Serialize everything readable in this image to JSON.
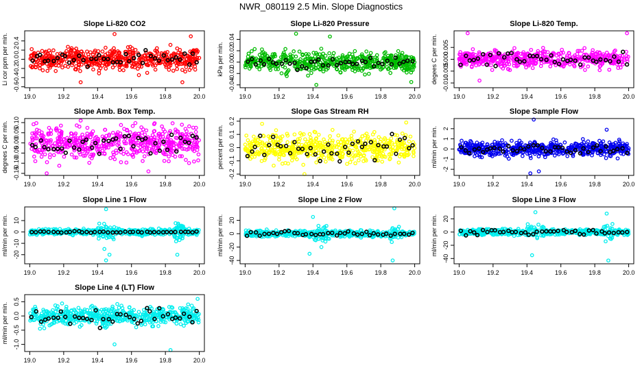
{
  "figure": {
    "title": "NWR_080119  2.5 Min. Slope Diagnostics"
  },
  "colors": {
    "ref_points": "#000000",
    "axes": "#000000"
  },
  "chart_data": [
    {
      "type": "scatter",
      "title": "Slope Li-820 CO2",
      "ylabel": "Li cor ppm per min.",
      "color": "#ff0000",
      "xlim": [
        18.97,
        20.03
      ],
      "ylim": [
        -0.62,
        0.62
      ],
      "yticks": [
        -0.6,
        -0.4,
        -0.2,
        0.0,
        0.2,
        0.4
      ],
      "yticklabels": [
        "-0.6",
        "-0.4",
        "-0.2",
        "0.0",
        "0.2",
        "0.4"
      ],
      "xticks": [
        19.0,
        19.2,
        19.4,
        19.6,
        19.8,
        20.0
      ],
      "xticklabels": [
        "19.0",
        "19.2",
        "19.4",
        "19.6",
        "19.8",
        "20.0"
      ],
      "spread": 0.16,
      "outliers": [
        [
          19.3,
          -0.5
        ],
        [
          19.5,
          0.55
        ],
        [
          19.9,
          -0.5
        ],
        [
          19.95,
          0.5
        ]
      ],
      "n": 550,
      "ref_n": 40,
      "ref_spread": 0.1
    },
    {
      "type": "scatter",
      "title": "Slope Li-820 Pressure",
      "ylabel": "kPa per min.",
      "color": "#00bb00",
      "xlim": [
        18.97,
        20.03
      ],
      "ylim": [
        -0.045,
        0.055
      ],
      "yticks": [
        -0.04,
        -0.02,
        0.0,
        0.02,
        0.04
      ],
      "yticklabels": [
        "-0.04",
        "-0.02",
        "0.00",
        "0.02",
        "0.04"
      ],
      "xticks": [
        19.0,
        19.2,
        19.4,
        19.6,
        19.8,
        20.0
      ],
      "xticklabels": [
        "19.0",
        "19.2",
        "19.4",
        "19.6",
        "19.8",
        "20.0"
      ],
      "spread": 0.012,
      "outliers": [
        [
          19.3,
          0.05
        ],
        [
          19.42,
          -0.04
        ],
        [
          19.5,
          0.045
        ],
        [
          19.98,
          -0.035
        ]
      ],
      "n": 550,
      "ref_n": 40,
      "ref_spread": 0.008
    },
    {
      "type": "scatter",
      "title": "Slope Li-820 Temp.",
      "ylabel": "degees C per min.",
      "color": "#ff00ff",
      "xlim": [
        18.97,
        20.03
      ],
      "ylim": [
        -0.012,
        0.012
      ],
      "yticks": [
        -0.01,
        -0.005,
        0.0,
        0.005
      ],
      "yticklabels": [
        "-0.010",
        "-0.005",
        "0.000",
        "0.005"
      ],
      "xticks": [
        19.0,
        19.2,
        19.4,
        19.6,
        19.8,
        20.0
      ],
      "xticklabels": [
        "19.0",
        "19.2",
        "19.4",
        "19.6",
        "19.8",
        "20.0"
      ],
      "spread": 0.0025,
      "outliers": [
        [
          19.05,
          0.011
        ],
        [
          19.12,
          -0.009
        ],
        [
          19.99,
          0.011
        ]
      ],
      "n": 500,
      "ref_n": 40,
      "ref_spread": 0.002
    },
    {
      "type": "scatter",
      "title": "Slope Amb. Box Temp.",
      "ylabel": "degrees C per min.",
      "color": "#ff00ff",
      "xlim": [
        18.97,
        20.03
      ],
      "ylim": [
        -0.16,
        0.12
      ],
      "yticks": [
        -0.15,
        -0.1,
        -0.05,
        0.0,
        0.05,
        0.1
      ],
      "yticklabels": [
        "-0.15",
        "-0.10",
        "-0.05",
        "0.00",
        "0.05",
        "0.10"
      ],
      "xticks": [
        19.0,
        19.2,
        19.4,
        19.6,
        19.8,
        20.0
      ],
      "xticklabels": [
        "19.0",
        "19.2",
        "19.4",
        "19.6",
        "19.8",
        "20.0"
      ],
      "spread": 0.055,
      "outliers": [
        [
          19.1,
          -0.15
        ],
        [
          19.3,
          0.11
        ],
        [
          19.7,
          -0.14
        ]
      ],
      "n": 550,
      "ref_n": 40,
      "ref_spread": 0.04
    },
    {
      "type": "scatter",
      "title": "Slope Gas Stream RH",
      "ylabel": "percent per min.",
      "color": "#ffff00",
      "xlim": [
        18.97,
        20.03
      ],
      "ylim": [
        -0.21,
        0.22
      ],
      "yticks": [
        -0.2,
        -0.1,
        0.0,
        0.1,
        0.2
      ],
      "yticklabels": [
        "-0.2",
        "-0.1",
        "0.0",
        "0.1",
        "0.2"
      ],
      "xticks": [
        19.0,
        19.2,
        19.4,
        19.6,
        19.8,
        20.0
      ],
      "xticklabels": [
        "19.0",
        "19.2",
        "19.4",
        "19.6",
        "19.8",
        "20.0"
      ],
      "spread": 0.07,
      "outliers": [
        [
          19.35,
          -0.2
        ],
        [
          19.1,
          0.18
        ],
        [
          19.95,
          0.19
        ]
      ],
      "n": 550,
      "ref_n": 40,
      "ref_spread": 0.06
    },
    {
      "type": "scatter",
      "title": "Slope Sample Flow",
      "ylabel": "ml/min per min.",
      "color": "#0000ee",
      "xlim": [
        18.97,
        20.03
      ],
      "ylim": [
        -2.6,
        3.0
      ],
      "yticks": [
        -2,
        -1,
        0,
        1,
        2
      ],
      "yticklabels": [
        "-2",
        "-1",
        "0",
        "1",
        "2"
      ],
      "xticks": [
        19.0,
        19.2,
        19.4,
        19.6,
        19.8,
        20.0
      ],
      "xticklabels": [
        "19.0",
        "19.2",
        "19.4",
        "19.6",
        "19.8",
        "20.0"
      ],
      "spread": 0.5,
      "outliers": [
        [
          19.44,
          2.9
        ],
        [
          19.42,
          -2.4
        ],
        [
          19.47,
          -2.2
        ],
        [
          19.87,
          1.9
        ]
      ],
      "n": 550,
      "ref_n": 40,
      "ref_spread": 0.3
    },
    {
      "type": "scatter",
      "title": "Slope Line 1 Flow",
      "ylabel": "ml/min per min.",
      "color": "#00eeee",
      "xlim": [
        18.97,
        20.03
      ],
      "ylim": [
        -28,
        22
      ],
      "yticks": [
        -20,
        -10,
        0,
        10
      ],
      "yticklabels": [
        "-20",
        "-10",
        "0",
        "10"
      ],
      "xticks": [
        19.0,
        19.2,
        19.4,
        19.6,
        19.8,
        20.0
      ],
      "xticklabels": [
        "19.0",
        "19.2",
        "19.4",
        "19.6",
        "19.8",
        "20.0"
      ],
      "spread": 1.8,
      "outliers": [
        [
          19.45,
          20
        ],
        [
          19.45,
          -25
        ],
        [
          19.47,
          -20
        ],
        [
          19.87,
          -20
        ],
        [
          19.44,
          -15
        ]
      ],
      "n": 550,
      "ref_n": 40,
      "ref_spread": 0.5
    },
    {
      "type": "scatter",
      "title": "Slope Line 2 Flow",
      "ylabel": "ml/min per min.",
      "color": "#00eeee",
      "xlim": [
        18.97,
        20.03
      ],
      "ylim": [
        -45,
        40
      ],
      "yticks": [
        -40,
        -20,
        0,
        20
      ],
      "yticklabels": [
        "-40",
        "-20",
        "0",
        "20"
      ],
      "xticks": [
        19.0,
        19.2,
        19.4,
        19.6,
        19.8,
        20.0
      ],
      "xticklabels": [
        "19.0",
        "19.2",
        "19.4",
        "19.6",
        "19.8",
        "20.0"
      ],
      "spread": 3,
      "outliers": [
        [
          19.88,
          38
        ],
        [
          19.87,
          -40
        ],
        [
          19.4,
          25
        ],
        [
          19.38,
          -30
        ],
        [
          19.45,
          -20
        ]
      ],
      "n": 550,
      "ref_n": 40,
      "ref_spread": 3
    },
    {
      "type": "scatter",
      "title": "Slope Line 3 Flow",
      "ylabel": "ml/min per min.",
      "color": "#00eeee",
      "xlim": [
        18.97,
        20.03
      ],
      "ylim": [
        -48,
        38
      ],
      "yticks": [
        -40,
        -20,
        0,
        20
      ],
      "yticklabels": [
        "-40",
        "-20",
        "0",
        "20"
      ],
      "xticks": [
        19.0,
        19.2,
        19.4,
        19.6,
        19.8,
        20.0
      ],
      "xticklabels": [
        "19.0",
        "19.2",
        "19.4",
        "19.6",
        "19.8",
        "20.0"
      ],
      "spread": 3,
      "outliers": [
        [
          19.45,
          30
        ],
        [
          19.43,
          -35
        ],
        [
          19.88,
          -43
        ],
        [
          19.87,
          28
        ]
      ],
      "n": 550,
      "ref_n": 40,
      "ref_spread": 3
    },
    {
      "type": "scatter",
      "title": "Slope Line 4 (LT) Flow",
      "ylabel": "ml/min per min.",
      "color": "#00eeee",
      "xlim": [
        18.97,
        20.03
      ],
      "ylim": [
        -1.25,
        0.75
      ],
      "yticks": [
        -1.0,
        -0.5,
        0.0,
        0.5
      ],
      "yticklabels": [
        "-1.0",
        "-0.5",
        "0.0",
        "0.5"
      ],
      "xticks": [
        19.0,
        19.2,
        19.4,
        19.6,
        19.8,
        20.0
      ],
      "xticklabels": [
        "19.0",
        "19.2",
        "19.4",
        "19.6",
        "19.8",
        "20.0"
      ],
      "spread": 0.22,
      "outliers": [
        [
          19.5,
          -1.0
        ],
        [
          19.83,
          -1.2
        ],
        [
          19.99,
          0.6
        ]
      ],
      "n": 550,
      "ref_n": 40,
      "ref_spread": 0.2
    }
  ]
}
